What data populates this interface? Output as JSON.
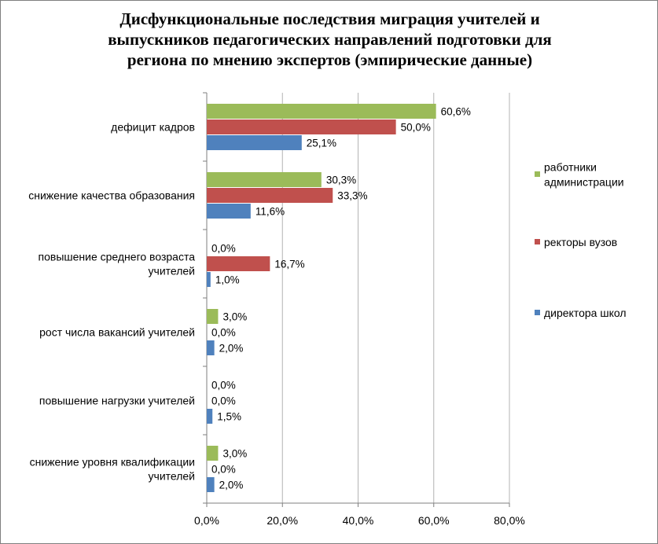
{
  "chart_data": {
    "type": "bar",
    "orientation": "horizontal",
    "title_lines": [
      "Дисфункциональные последствия миграция учителей и",
      "выпускников педагогических направлений подготовки для",
      "региона по мнению экспертов (эмпирические данные)"
    ],
    "categories": [
      [
        "дефицит кадров"
      ],
      [
        "снижение качества образования"
      ],
      [
        "повышение среднего возраста",
        "учителей"
      ],
      [
        "рост числа вакансий учителей"
      ],
      [
        "повышение нагрузки учителей"
      ],
      [
        "снижение уровня квалификации",
        "учителей"
      ]
    ],
    "series": [
      {
        "name_lines": [
          "работники",
          "администрации"
        ],
        "color": "#9bbb59",
        "values": [
          60.6,
          30.3,
          0.0,
          3.0,
          0.0,
          3.0
        ],
        "labels": [
          "60,6%",
          "30,3%",
          "0,0%",
          "3,0%",
          "0,0%",
          "3,0%"
        ]
      },
      {
        "name_lines": [
          "ректоры вузов"
        ],
        "color": "#c0504d",
        "values": [
          50.0,
          33.3,
          16.7,
          0.0,
          0.0,
          0.0
        ],
        "labels": [
          "50,0%",
          "33,3%",
          "16,7%",
          "0,0%",
          "0,0%",
          "0,0%"
        ]
      },
      {
        "name_lines": [
          "директора школ"
        ],
        "color": "#4f81bd",
        "values": [
          25.1,
          11.6,
          1.0,
          2.0,
          1.5,
          2.0
        ],
        "labels": [
          "25,1%",
          "11,6%",
          "1,0%",
          "2,0%",
          "1,5%",
          "2,0%"
        ]
      }
    ],
    "xlim": [
      0,
      80
    ],
    "xticks": [
      0,
      20,
      40,
      60,
      80
    ],
    "xtick_labels": [
      "0,0%",
      "20,0%",
      "40,0%",
      "60,0%",
      "80,0%"
    ],
    "grid": true,
    "legend_position": "right"
  }
}
